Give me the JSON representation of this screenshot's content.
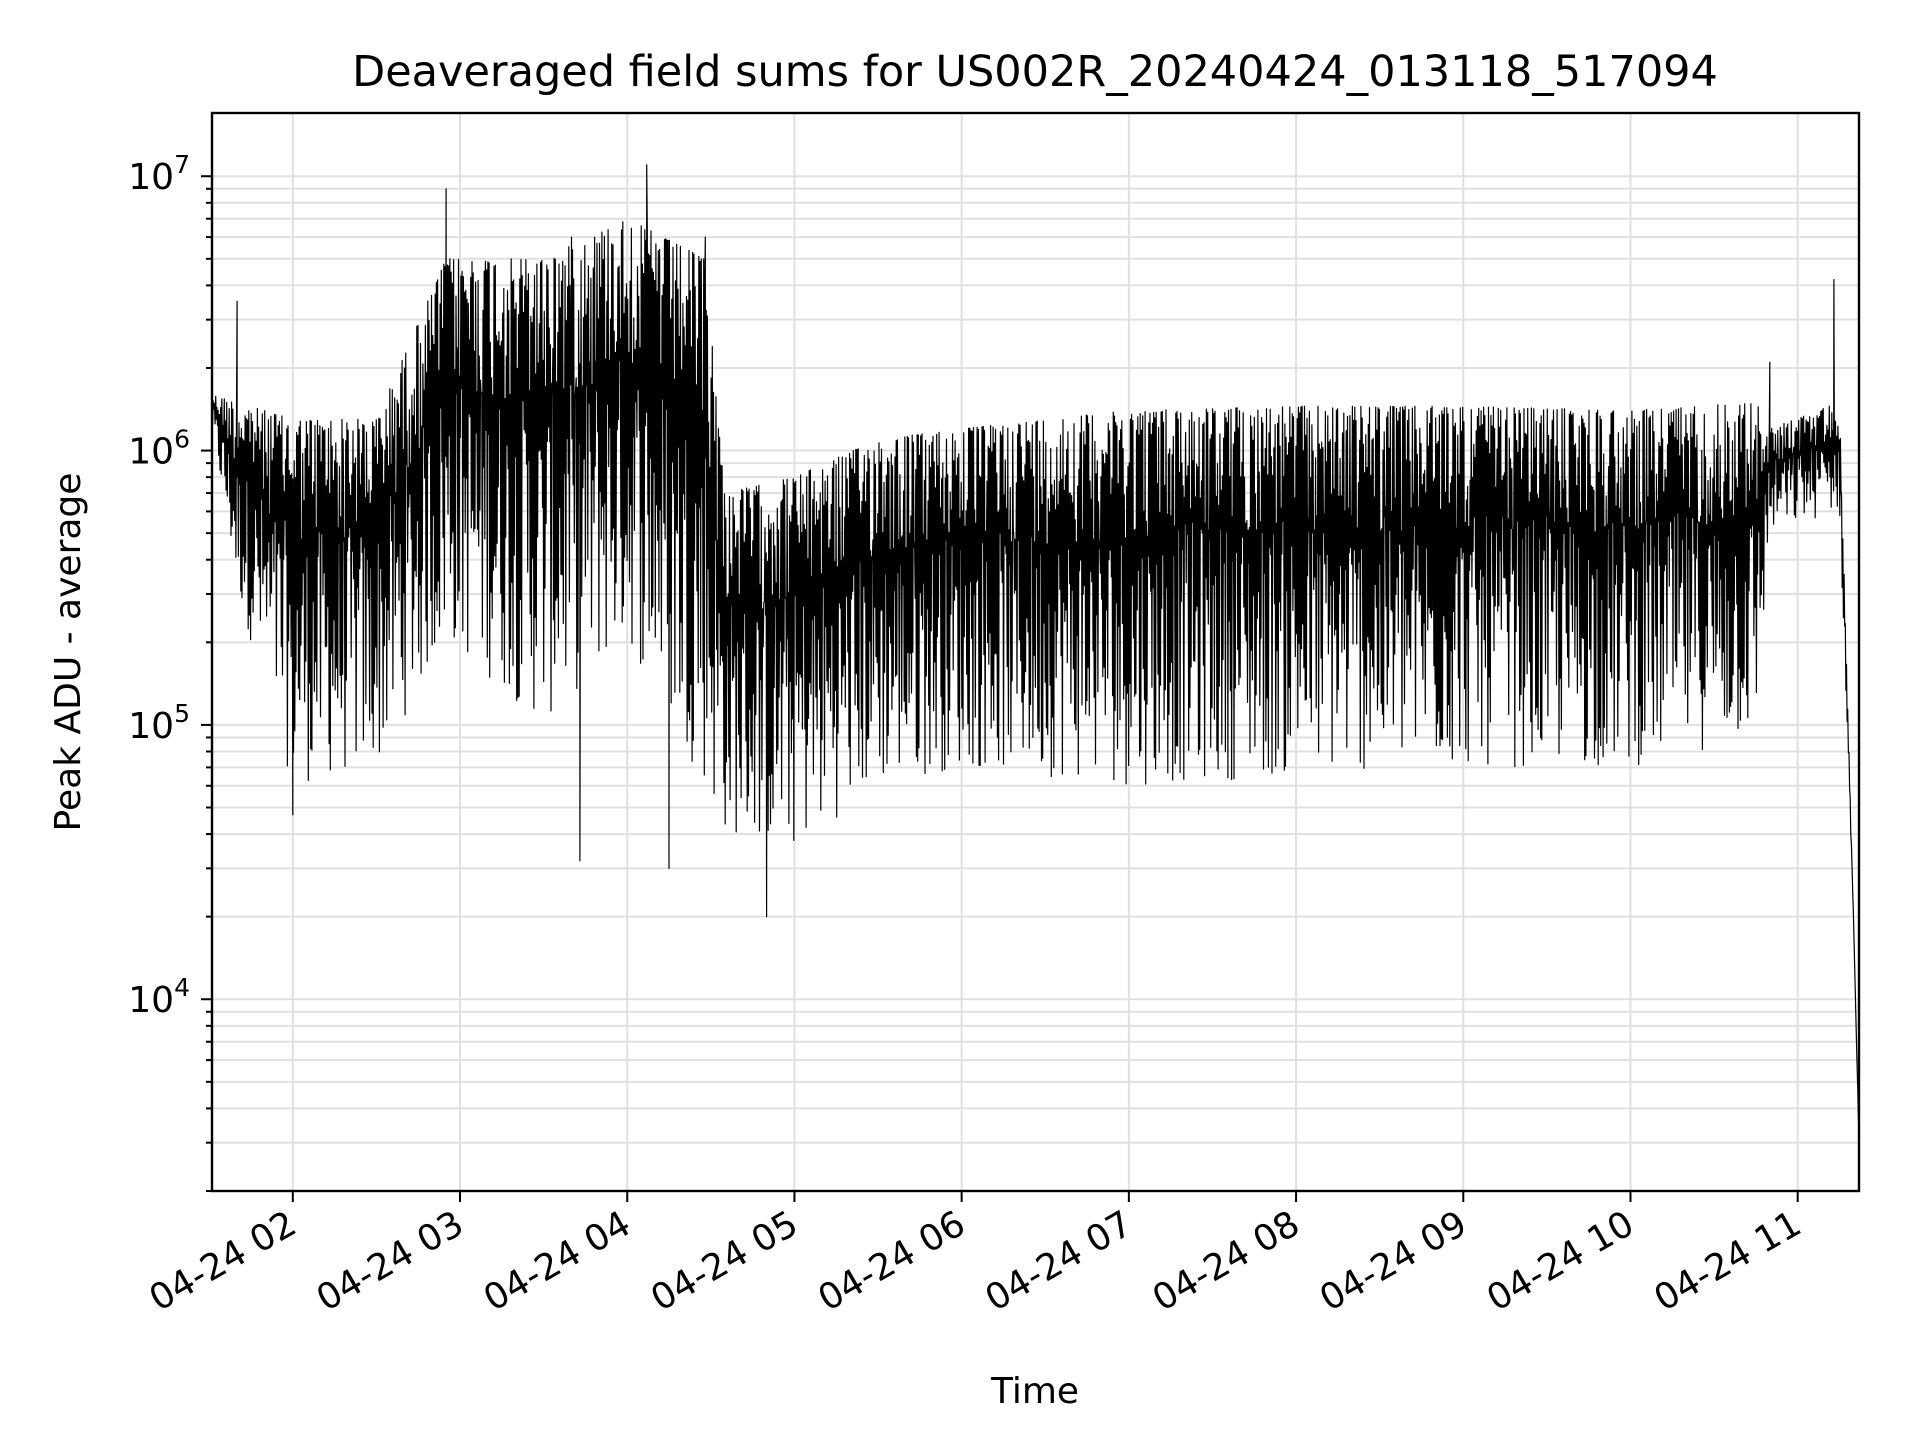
{
  "chart_data": {
    "type": "line",
    "title": "Deaveraged field sums for US002R_20240424_013118_517094",
    "xlabel": "Time",
    "ylabel": "Peak ADU - average",
    "yscale": "log",
    "xlim": [
      "2024-04-24 01:31",
      "2024-04-24 11:22"
    ],
    "ylim": [
      2000,
      17000000
    ],
    "grid": true,
    "x_ticks": [
      "04-24 02",
      "04-24 03",
      "04-24 04",
      "04-24 05",
      "04-24 06",
      "04-24 07",
      "04-24 08",
      "04-24 09",
      "04-24 10",
      "04-24 11"
    ],
    "y_ticks": [
      {
        "base": "10",
        "exp": "4",
        "value": 10000
      },
      {
        "base": "10",
        "exp": "5",
        "value": 100000
      },
      {
        "base": "10",
        "exp": "6",
        "value": 1000000
      },
      {
        "base": "10",
        "exp": "7",
        "value": 10000000
      }
    ],
    "series": [
      {
        "color": "#000000",
        "envelope": [
          {
            "t": "01:31",
            "upper": 1600000,
            "lower": 1200000
          },
          {
            "t": "01:40",
            "upper": 1500000,
            "lower": 300000
          },
          {
            "t": "02:00",
            "upper": 1300000,
            "lower": 60000
          },
          {
            "t": "02:30",
            "upper": 1300000,
            "lower": 70000
          },
          {
            "t": "02:55",
            "upper": 5000000,
            "lower": 200000
          },
          {
            "t": "03:30",
            "upper": 5000000,
            "lower": 100000
          },
          {
            "t": "04:00",
            "upper": 7000000,
            "lower": 200000
          },
          {
            "t": "04:28",
            "upper": 5000000,
            "lower": 60000
          },
          {
            "t": "04:35",
            "upper": 700000,
            "lower": 40000
          },
          {
            "t": "05:00",
            "upper": 800000,
            "lower": 35000
          },
          {
            "t": "05:30",
            "upper": 1100000,
            "lower": 60000
          },
          {
            "t": "06:00",
            "upper": 1200000,
            "lower": 70000
          },
          {
            "t": "06:30",
            "upper": 1300000,
            "lower": 65000
          },
          {
            "t": "07:00",
            "upper": 1400000,
            "lower": 60000
          },
          {
            "t": "08:00",
            "upper": 1450000,
            "lower": 65000
          },
          {
            "t": "09:00",
            "upper": 1450000,
            "lower": 70000
          },
          {
            "t": "10:00",
            "upper": 1400000,
            "lower": 70000
          },
          {
            "t": "10:45",
            "upper": 1500000,
            "lower": 90000
          },
          {
            "t": "10:50",
            "upper": 1200000,
            "lower": 500000
          },
          {
            "t": "11:15",
            "upper": 1500000,
            "lower": 600000
          },
          {
            "t": "11:20",
            "upper": 20000,
            "lower": 20000
          },
          {
            "t": "11:22",
            "upper": 3000,
            "lower": 3000
          }
        ],
        "peaks": [
          {
            "t": "01:40",
            "value": 3500000
          },
          {
            "t": "02:55",
            "value": 9000000
          },
          {
            "t": "03:40",
            "value": 6000000
          },
          {
            "t": "04:07",
            "value": 11000000
          },
          {
            "t": "04:28",
            "value": 6000000
          },
          {
            "t": "10:50",
            "value": 2100000
          },
          {
            "t": "11:13",
            "value": 4200000
          }
        ],
        "troughs": [
          {
            "t": "02:00",
            "value": 47000
          },
          {
            "t": "03:43",
            "value": 32000
          },
          {
            "t": "04:15",
            "value": 30000
          },
          {
            "t": "04:50",
            "value": 20000
          }
        ]
      }
    ]
  }
}
